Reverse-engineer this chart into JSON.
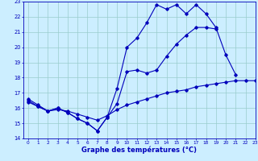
{
  "title": "Graphe des températures (°C)",
  "bg_color": "#cceeff",
  "line_color": "#0000bb",
  "grid_color": "#99cccc",
  "line1_x": [
    0,
    1,
    2,
    3,
    4,
    5,
    6,
    7,
    8,
    9,
    10,
    11,
    12,
    13,
    14,
    15,
    16,
    17,
    18,
    19,
    20,
    21
  ],
  "line1_y": [
    16.6,
    16.2,
    15.8,
    16.0,
    15.7,
    15.3,
    15.0,
    14.5,
    15.4,
    17.3,
    20.0,
    20.6,
    21.6,
    22.8,
    22.5,
    22.8,
    22.2,
    22.8,
    22.2,
    21.3,
    19.5,
    18.2
  ],
  "line2_x": [
    0,
    1,
    2,
    3,
    4,
    5,
    6,
    7,
    8,
    9,
    10,
    11,
    12,
    13,
    14,
    15,
    16,
    17,
    18,
    19
  ],
  "line2_y": [
    16.5,
    16.1,
    15.8,
    16.0,
    15.7,
    15.3,
    15.0,
    14.5,
    15.4,
    16.3,
    18.4,
    18.5,
    18.3,
    18.5,
    19.4,
    20.2,
    20.8,
    21.3,
    21.3,
    21.2
  ],
  "line3_x": [
    0,
    1,
    2,
    3,
    4,
    5,
    6,
    7,
    8,
    9,
    10,
    11,
    12,
    13,
    14,
    15,
    16,
    17,
    18,
    19,
    20,
    21,
    22,
    23
  ],
  "line3_y": [
    16.4,
    16.1,
    15.8,
    15.9,
    15.8,
    15.6,
    15.4,
    15.2,
    15.5,
    15.9,
    16.2,
    16.4,
    16.6,
    16.8,
    17.0,
    17.1,
    17.2,
    17.4,
    17.5,
    17.6,
    17.7,
    17.8,
    17.8,
    17.8
  ],
  "ylim": [
    14,
    23
  ],
  "xlim": [
    -0.5,
    23
  ],
  "yticks": [
    14,
    15,
    16,
    17,
    18,
    19,
    20,
    21,
    22,
    23
  ],
  "xticks": [
    0,
    1,
    2,
    3,
    4,
    5,
    6,
    7,
    8,
    9,
    10,
    11,
    12,
    13,
    14,
    15,
    16,
    17,
    18,
    19,
    20,
    21,
    22,
    23
  ]
}
